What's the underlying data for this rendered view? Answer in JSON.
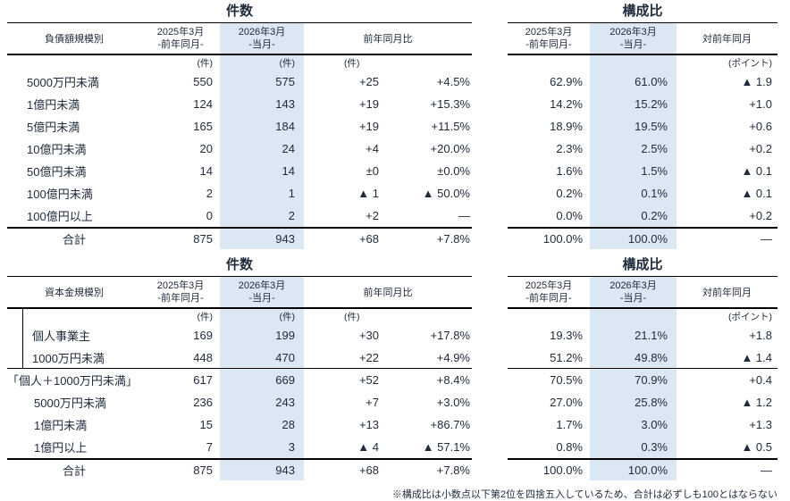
{
  "titles": {
    "count": "件数",
    "ratio": "構成比"
  },
  "headers": {
    "period_prev": "2025年3月",
    "period_prev_sub": "-前年同月-",
    "period_cur": "2026年3月",
    "period_cur_sub": "-当月-",
    "yoy": "前年同月比",
    "yoy_ratio": "対前年同月",
    "unit_count": "(件)",
    "unit_point": "(ポイント)"
  },
  "colors": {
    "highlight": "#dbe7f3",
    "text": "#202c3c",
    "line": "#000000"
  },
  "table1": {
    "category_header": "負債額規模別",
    "rows": [
      {
        "label": "5000万円未満",
        "prev": "550",
        "cur": "575",
        "diff": "+25",
        "pct": "+4.5%",
        "rprev": "62.9%",
        "rcur": "61.0%",
        "rdiff": "▲ 1.9"
      },
      {
        "label": "1億円未満",
        "prev": "124",
        "cur": "143",
        "diff": "+19",
        "pct": "+15.3%",
        "rprev": "14.2%",
        "rcur": "15.2%",
        "rdiff": "+1.0"
      },
      {
        "label": "5億円未満",
        "prev": "165",
        "cur": "184",
        "diff": "+19",
        "pct": "+11.5%",
        "rprev": "18.9%",
        "rcur": "19.5%",
        "rdiff": "+0.6"
      },
      {
        "label": "10億円未満",
        "prev": "20",
        "cur": "24",
        "diff": "+4",
        "pct": "+20.0%",
        "rprev": "2.3%",
        "rcur": "2.5%",
        "rdiff": "+0.2"
      },
      {
        "label": "50億円未満",
        "prev": "14",
        "cur": "14",
        "diff": "±0",
        "pct": "±0.0%",
        "rprev": "1.6%",
        "rcur": "1.5%",
        "rdiff": "▲ 0.1"
      },
      {
        "label": "100億円未満",
        "prev": "2",
        "cur": "1",
        "diff": "▲ 1",
        "pct": "▲ 50.0%",
        "rprev": "0.2%",
        "rcur": "0.1%",
        "rdiff": "▲ 0.1"
      },
      {
        "label": "100億円以上",
        "prev": "0",
        "cur": "2",
        "diff": "+2",
        "pct": "—",
        "rprev": "0.0%",
        "rcur": "0.2%",
        "rdiff": "+0.2"
      }
    ],
    "total": {
      "label": "合計",
      "prev": "875",
      "cur": "943",
      "diff": "+68",
      "pct": "+7.8%",
      "rprev": "100.0%",
      "rcur": "100.0%",
      "rdiff": "—"
    }
  },
  "table2": {
    "category_header": "資本金規模別",
    "rows": [
      {
        "label": "個人事業主",
        "prev": "169",
        "cur": "199",
        "diff": "+30",
        "pct": "+17.8%",
        "rprev": "19.3%",
        "rcur": "21.1%",
        "rdiff": "+1.8"
      },
      {
        "label": "1000万円未満",
        "prev": "448",
        "cur": "470",
        "diff": "+22",
        "pct": "+4.9%",
        "rprev": "51.2%",
        "rcur": "49.8%",
        "rdiff": "▲ 1.4"
      },
      {
        "label": "「個人＋1000万円未満」",
        "prev": "617",
        "cur": "669",
        "diff": "+52",
        "pct": "+8.4%",
        "rprev": "70.5%",
        "rcur": "70.9%",
        "rdiff": "+0.4"
      },
      {
        "label": "5000万円未満",
        "prev": "236",
        "cur": "243",
        "diff": "+7",
        "pct": "+3.0%",
        "rprev": "27.0%",
        "rcur": "25.8%",
        "rdiff": "▲ 1.2"
      },
      {
        "label": "1億円未満",
        "prev": "15",
        "cur": "28",
        "diff": "+13",
        "pct": "+86.7%",
        "rprev": "1.7%",
        "rcur": "3.0%",
        "rdiff": "+1.3"
      },
      {
        "label": "1億円以上",
        "prev": "7",
        "cur": "3",
        "diff": "▲ 4",
        "pct": "▲ 57.1%",
        "rprev": "0.8%",
        "rcur": "0.3%",
        "rdiff": "▲ 0.5"
      }
    ],
    "total": {
      "label": "合計",
      "prev": "875",
      "cur": "943",
      "diff": "+68",
      "pct": "+7.8%",
      "rprev": "100.0%",
      "rcur": "100.0%",
      "rdiff": "—"
    }
  },
  "footnote": "※構成比は小数点以下第2位を四捨五入しているため、合計は必ずしも100とはならない"
}
